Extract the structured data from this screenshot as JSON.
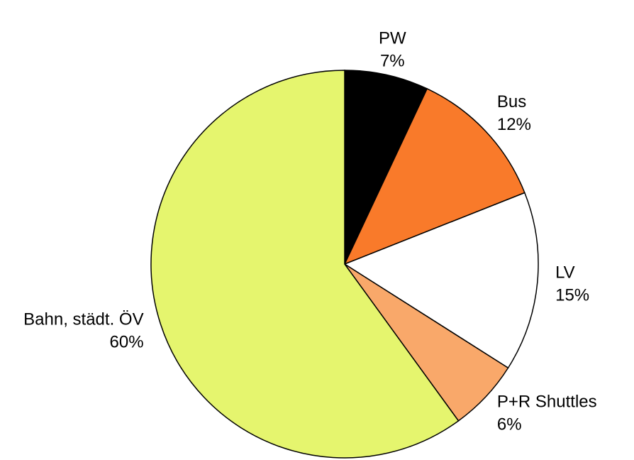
{
  "chart_data": {
    "type": "pie",
    "categories": [
      "PW",
      "Bus",
      "LV",
      "P+R Shuttles",
      "Bahn, städt. ÖV"
    ],
    "values": [
      7,
      12,
      15,
      6,
      60
    ],
    "value_labels": [
      "7%",
      "12%",
      "15%",
      "6%",
      "60%"
    ],
    "colors": [
      "#000000",
      "#f97a2a",
      "#ffffff",
      "#f9a86a",
      "#e5f56e"
    ]
  }
}
